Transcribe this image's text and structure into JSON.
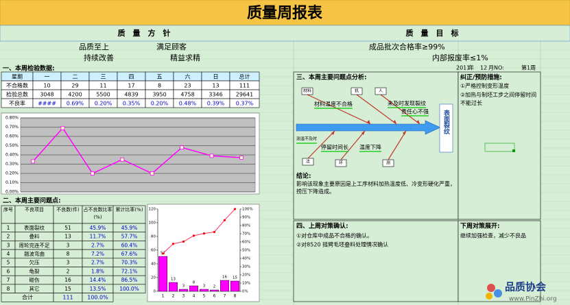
{
  "title": "质量周报表",
  "policy": {
    "heading": "质　量　方　针",
    "items": [
      "品质至上",
      "满足顾客",
      "持续改善",
      "精益求精"
    ]
  },
  "goals": {
    "heading": "质　量　目　标",
    "items": [
      "成品批次合格率≥99%",
      "内部报废率≤1%"
    ]
  },
  "inspection": {
    "heading": "一、本周检验数据:",
    "columns": [
      "星期",
      "一",
      "二",
      "三",
      "四",
      "五",
      "六",
      "日",
      "总计"
    ],
    "rows": [
      [
        "不合格数",
        10,
        29,
        11,
        17,
        8,
        23,
        13,
        111
      ],
      [
        "检验总数",
        3048,
        4200,
        5500,
        4839,
        3950,
        4758,
        3346,
        29641
      ],
      [
        "不良率",
        "####",
        "0.69%",
        "0.20%",
        "0.35%",
        "0.20%",
        "0.48%",
        "0.39%",
        "0.37%"
      ]
    ]
  },
  "rate_chart": {
    "type": "line",
    "values": [
      0.33,
      0.69,
      0.2,
      0.35,
      0.2,
      0.48,
      0.39,
      0.37
    ],
    "color": "#ff00ff",
    "ylim": [
      0,
      0.8
    ],
    "yticks": [
      {
        "value": 0,
        "label": "0.00%"
      },
      {
        "value": 0.1,
        "label": "0.10%"
      },
      {
        "value": 0.2,
        "label": "0.20%"
      },
      {
        "value": 0.3,
        "label": "0.30%"
      },
      {
        "value": 0.4,
        "label": "0.40%"
      },
      {
        "value": 0.5,
        "label": "0.50%"
      },
      {
        "value": 0.6,
        "label": "0.60%"
      },
      {
        "value": 0.7,
        "label": "0.70%"
      },
      {
        "value": 0.8,
        "label": "0.80%"
      }
    ]
  },
  "problems": {
    "heading": "二、本周主要问题点:",
    "columns": [
      "序号",
      "不良项目",
      "不良数(件)",
      "占不良数比率(%)",
      "累计比率(%)"
    ],
    "rows": [
      [
        1,
        "表面裂纹",
        51,
        "45.9%",
        "45.9%"
      ],
      [
        2,
        "叠料",
        13,
        "11.7%",
        "57.7%"
      ],
      [
        3,
        "周轮完连不足",
        3,
        "2.7%",
        "60.4%"
      ],
      [
        4,
        "翘波弯曲",
        8,
        "7.2%",
        "67.6%"
      ],
      [
        5,
        "欠压",
        3,
        "2.7%",
        "70.3%"
      ],
      [
        6,
        "龟裂",
        2,
        "1.8%",
        "72.1%"
      ],
      [
        7,
        "碰伤",
        16,
        "14.4%",
        "86.5%"
      ],
      [
        8,
        "其它",
        15,
        "13.5%",
        "100.0%"
      ]
    ],
    "total": [
      "合计",
      111,
      "100.0%"
    ]
  },
  "pareto_chart": {
    "type": "bar",
    "categories": [
      "1",
      "2",
      "3",
      "4",
      "5",
      "6",
      "7",
      "8"
    ],
    "values": [
      51,
      13,
      3,
      8,
      3,
      2,
      16,
      15
    ],
    "color": "#ff00ff",
    "ylim": [
      0,
      120
    ],
    "yticks": [
      0,
      20,
      40,
      60,
      80,
      100,
      120
    ],
    "cumulative": {
      "values": [
        45.9,
        57.7,
        60.4,
        67.6,
        70.3,
        72.1,
        86.5,
        100
      ],
      "color": "#ff3366",
      "axis": "y2"
    },
    "y2lim": [
      0,
      100
    ],
    "y2ticks": [
      {
        "value": 0,
        "label": "0%"
      },
      {
        "value": 10,
        "label": "10%"
      },
      {
        "value": 20,
        "label": "20%"
      },
      {
        "value": 30,
        "label": "30%"
      },
      {
        "value": 40,
        "label": "40%"
      },
      {
        "value": 50,
        "label": "50%"
      },
      {
        "value": 60,
        "label": "60%"
      },
      {
        "value": 70,
        "label": "70%"
      },
      {
        "value": 80,
        "label": "80%"
      },
      {
        "value": 90,
        "label": "90%"
      },
      {
        "value": 100,
        "label": "100%"
      }
    ]
  },
  "analysis": {
    "heading": "三、本周主要问题点分析:",
    "date": [
      "2011",
      "年",
      "12",
      "月NO:",
      "第1周"
    ],
    "fishbone": {
      "effect": "表面裂纹",
      "categories": [
        "材料",
        "机",
        "人",
        "法",
        "环",
        "测"
      ],
      "causes": [
        "材料温度不合格",
        "未及时发现裂纹",
        "责任心不强",
        "测温不及时",
        "停留时间长",
        "温度下降"
      ]
    },
    "conclusion_label": "结论:",
    "conclusion": "影响该现象主要原因是上工序材料加热温度低、冷变形硬化严重，捞压下降造成。"
  },
  "corrective": {
    "heading": "纠正/预防措施:",
    "items": [
      "①严格控制变形温度",
      "②加热与制坯工步之间停留时间不能过长"
    ]
  },
  "last_week": {
    "heading": "四、上周对策确认:",
    "items": [
      "①对仓库中成品不合格的确认。",
      "②对8520 摇臂毛坯叠料处理情况确认"
    ]
  },
  "next_week": {
    "heading": "下周对策展开:",
    "items": [
      "继续加强检查，减少不良品"
    ]
  },
  "watermark": {
    "name": "品质协会",
    "url": "www.PinZhi.org"
  }
}
